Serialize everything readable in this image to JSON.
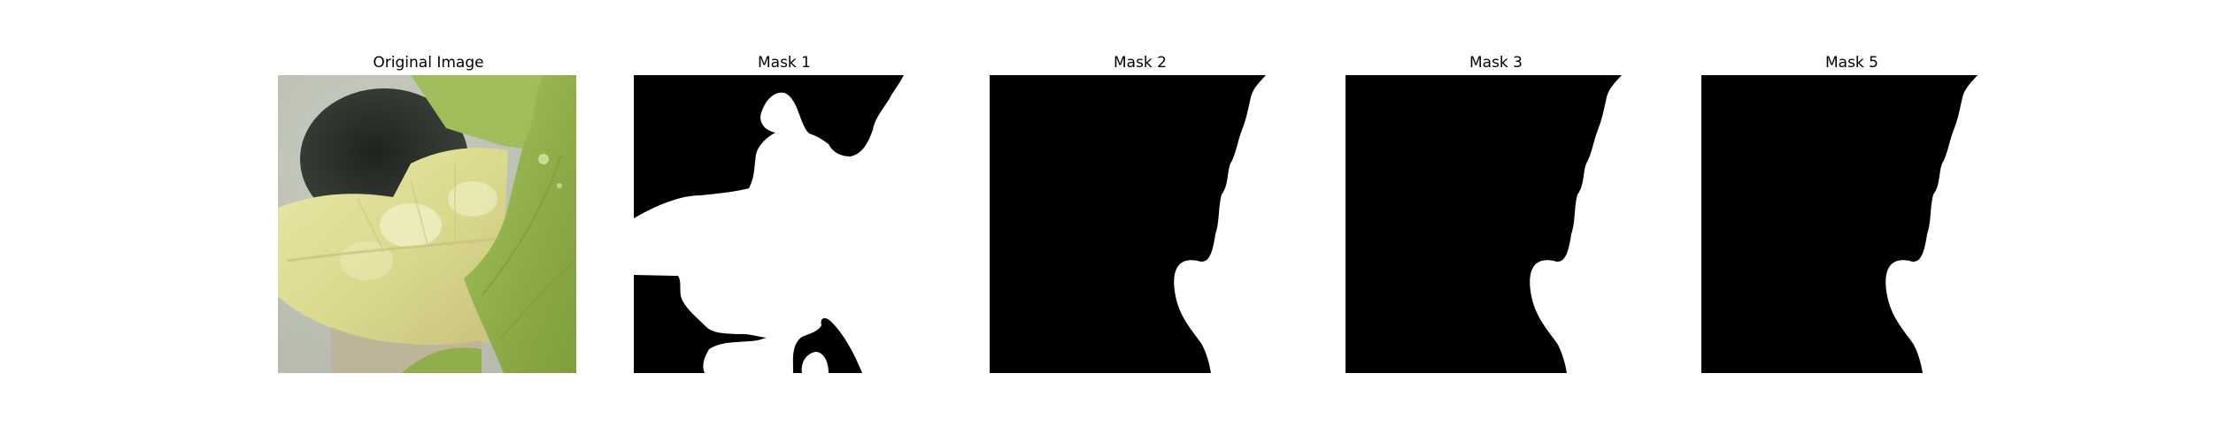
{
  "figure": {
    "panels": [
      {
        "title": "Original Image"
      },
      {
        "title": "Mask 1"
      },
      {
        "title": "Mask 2"
      },
      {
        "title": "Mask 3"
      },
      {
        "title": "Mask 5"
      }
    ]
  },
  "colors": {
    "mask_foreground": "#ffffff",
    "mask_background": "#000000",
    "leaf_pale": "#e7e6a2",
    "leaf_green": "#8fb04a",
    "background_gray": "#d3d6cb",
    "shadow_dark": "#2a2e28"
  }
}
